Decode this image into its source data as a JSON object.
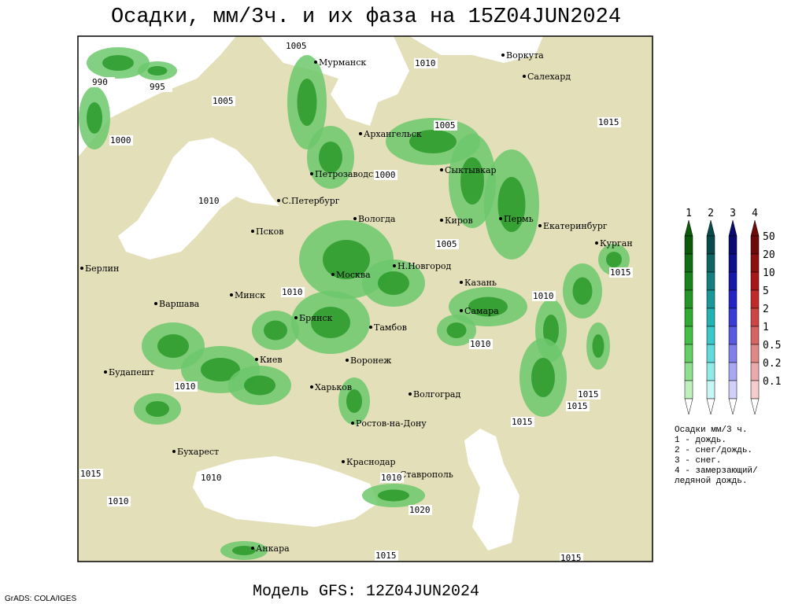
{
  "header": {
    "title": "Осадки, мм/3ч. и их фаза на 15Z04JUN2024"
  },
  "footer": {
    "model": "Модель GFS: 12Z04JUN2024",
    "credit": "GrADS: COLA/IGES"
  },
  "map": {
    "cities": [
      "Мурманск",
      "Воркута",
      "Салехард",
      "Архангельск",
      "Сыктывкар",
      "Петрозаводск",
      "С.Петербург",
      "Вологда",
      "Киров",
      "Пермь",
      "Екатеринбург",
      "Курган",
      "Псков",
      "Берлин",
      "Москва",
      "Н.Новгород",
      "Казань",
      "Минск",
      "Варшава",
      "Самара",
      "Брянск",
      "Тамбов",
      "Киев",
      "Воронеж",
      "Будапешт",
      "Харьков",
      "Волгоград",
      "Ростов-на-Дону",
      "Бухарест",
      "Краснодар",
      "Ставрополь",
      "Анкара"
    ],
    "isobar_labels": [
      "1005",
      "1010",
      "990",
      "995",
      "1005",
      "1000",
      "1005",
      "1015",
      "1000",
      "1010",
      "1005",
      "1015",
      "1010",
      "1010",
      "1010",
      "1010",
      "1015",
      "1015",
      "1015",
      "1015",
      "1010",
      "1010",
      "1010",
      "1020",
      "1015",
      "1015"
    ]
  },
  "legend": {
    "columns": [
      "1",
      "2",
      "3",
      "4"
    ],
    "levels": [
      "50",
      "20",
      "10",
      "5",
      "2",
      "1",
      "0.5",
      "0.2",
      "0.1"
    ],
    "notes": [
      "Осадки мм/3 ч.",
      "1 - дождь.",
      "2 - снег/дождь.",
      "3 - снег.",
      "4 - замерзающий/",
      "ледяной дождь."
    ]
  }
}
